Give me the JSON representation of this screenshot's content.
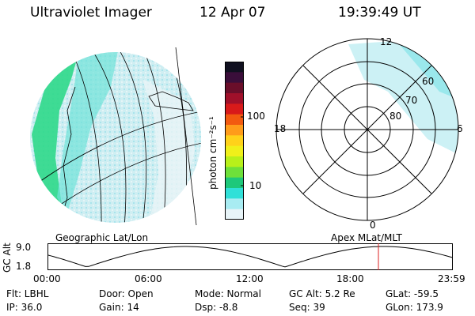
{
  "header": {
    "instrument": "Ultraviolet Imager",
    "date": "12 Apr 07",
    "time": "19:39:49 UT"
  },
  "geo_panel": {
    "label": "Geographic Lat/Lon"
  },
  "polar_panel": {
    "label": "Apex MLat/MLT",
    "mlt_labels": {
      "top": "12",
      "bottom": "0",
      "left": "18",
      "right": "6"
    },
    "lat_labels": [
      "60",
      "70",
      "80"
    ]
  },
  "colorbar": {
    "unit_label": "photon cm⁻²s⁻¹",
    "tick_labels": [
      "100",
      "10"
    ],
    "colors": [
      "#101020",
      "#3a0e3a",
      "#6a0e2a",
      "#a0102a",
      "#d81a1a",
      "#f25a10",
      "#ff9c1a",
      "#ffd21a",
      "#f0f01a",
      "#b8f01a",
      "#6ee03a",
      "#1ec87a",
      "#30e0d8",
      "#a8ecf2",
      "#e8f4f8"
    ]
  },
  "gc_alt_plot": {
    "axis_label": "GC Alt",
    "y_ticks": [
      "9.0",
      "1.8"
    ],
    "x_ticks": [
      "00:00",
      "06:00",
      "12:00",
      "18:00",
      "23:59"
    ]
  },
  "info": {
    "flt": "Flt: LBHL",
    "ip": "IP: 36.0",
    "door": "Door: Open",
    "gain": "Gain: 14",
    "mode": "Mode: Normal",
    "dsp": "Dsp:   -8.8",
    "gc_alt": "GC Alt: 5.2 Re",
    "seq": "Seq: 39",
    "glat": "GLat: -59.5",
    "glon": "GLon: 173.9"
  }
}
